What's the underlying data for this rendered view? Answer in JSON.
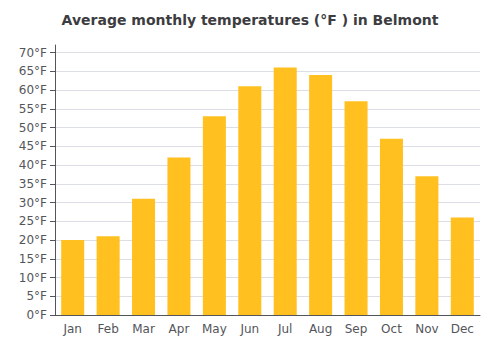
{
  "chart_data": {
    "type": "bar",
    "title": "Average monthly temperatures (°F ) in Belmont",
    "categories": [
      "Jan",
      "Feb",
      "Mar",
      "Apr",
      "May",
      "Jun",
      "Jul",
      "Aug",
      "Sep",
      "Oct",
      "Nov",
      "Dec"
    ],
    "values": [
      20,
      21,
      31,
      42,
      53,
      61,
      66,
      64,
      57,
      47,
      37,
      26
    ],
    "color": "#FFC020",
    "ylim": [
      0,
      72
    ],
    "yticks": [
      {
        "value": 0,
        "label": "0°F"
      },
      {
        "value": 5,
        "label": "5°F"
      },
      {
        "value": 10,
        "label": "10°F"
      },
      {
        "value": 15,
        "label": "15°F"
      },
      {
        "value": 20,
        "label": "20°F"
      },
      {
        "value": 25,
        "label": "25°F"
      },
      {
        "value": 30,
        "label": "30°F"
      },
      {
        "value": 35,
        "label": "35°F"
      },
      {
        "value": 40,
        "label": "40°F"
      },
      {
        "value": 45,
        "label": "45°F"
      },
      {
        "value": 50,
        "label": "50°F"
      },
      {
        "value": 55,
        "label": "55°F"
      },
      {
        "value": 60,
        "label": "60°F"
      },
      {
        "value": 65,
        "label": "65°F"
      },
      {
        "value": 70,
        "label": "70°F"
      }
    ],
    "grid": true
  }
}
